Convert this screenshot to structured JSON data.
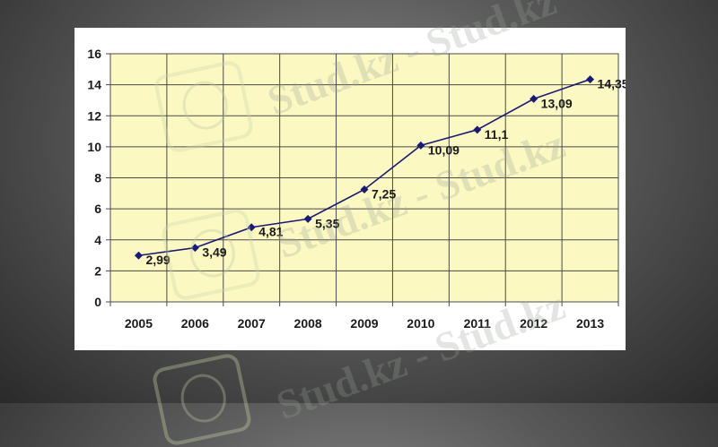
{
  "watermark": "Stud.kz - Stud.kz",
  "chart_data": {
    "type": "line",
    "categories": [
      "2005",
      "2006",
      "2007",
      "2008",
      "2009",
      "2010",
      "2011",
      "2012",
      "2013"
    ],
    "values": [
      2.99,
      3.49,
      4.81,
      5.35,
      7.25,
      10.09,
      11.1,
      13.09,
      14.35
    ],
    "data_labels": [
      "2,99",
      "3,49",
      "4,81",
      "5,35",
      "7,25",
      "10,09",
      "11,1",
      "13,09",
      "14,35"
    ],
    "yticks": [
      "0",
      "2",
      "4",
      "6",
      "8",
      "10",
      "12",
      "14",
      "16"
    ],
    "ylim": [
      0,
      16
    ],
    "ystep": 2,
    "grid": true,
    "marker": "diamond",
    "colors": {
      "line": "#1a1a7a",
      "plot_background": "#fcf8c2",
      "grid": "#4a4a4a",
      "text": "#1a1a1a"
    },
    "title": "",
    "xlabel": "",
    "ylabel": ""
  }
}
